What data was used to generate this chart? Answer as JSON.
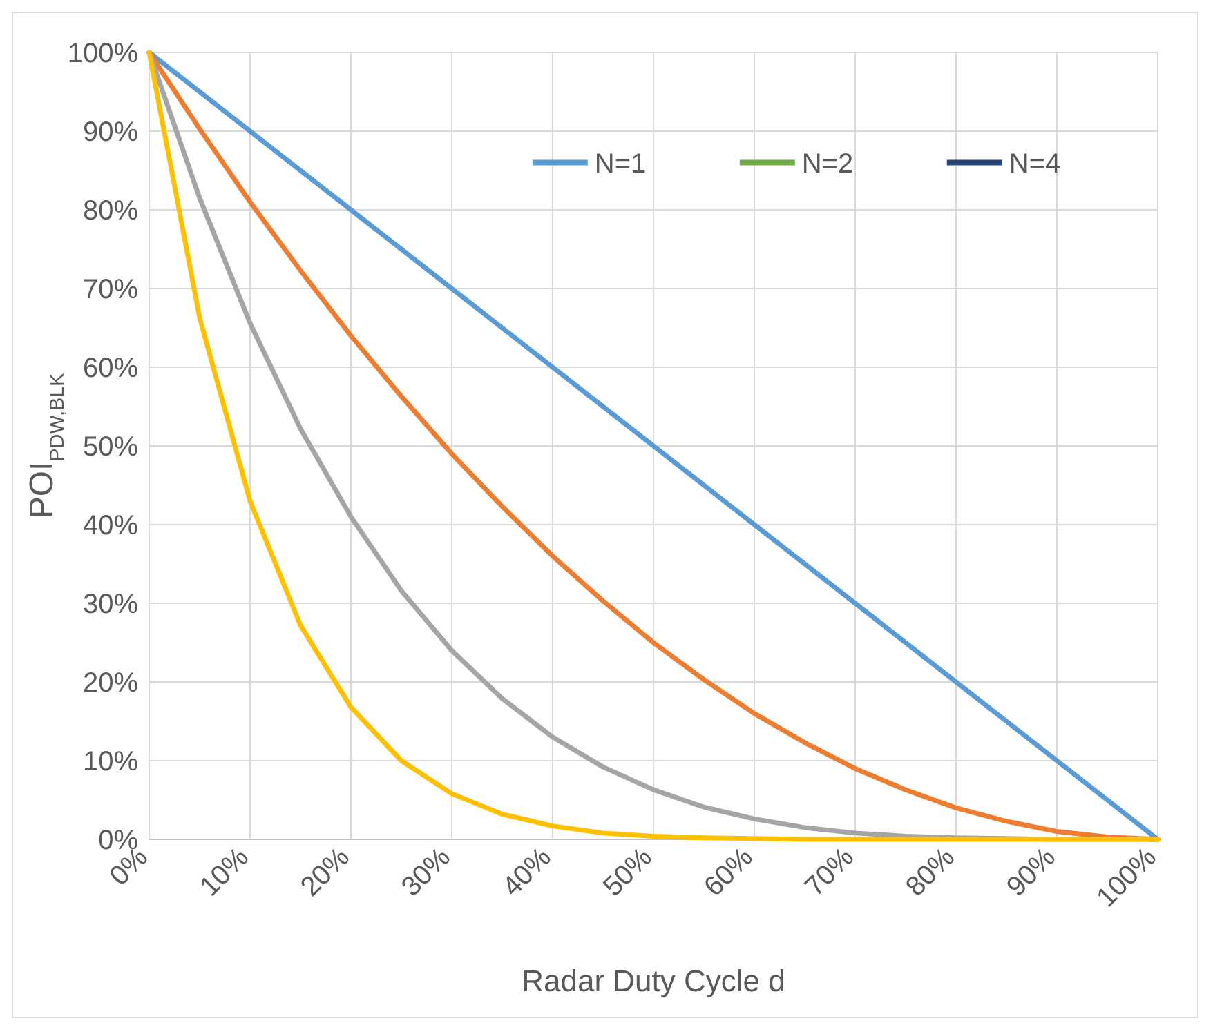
{
  "chart_data": {
    "type": "line",
    "xlabel": "Radar Duty Cycle d",
    "ylabel": "POI$_{PDW,BLK}$",
    "x": [
      0,
      5,
      10,
      15,
      20,
      25,
      30,
      35,
      40,
      45,
      50,
      55,
      60,
      65,
      70,
      75,
      80,
      85,
      90,
      95,
      100
    ],
    "xlim": [
      0,
      100
    ],
    "ylim": [
      0,
      100
    ],
    "xticks": [
      {
        "value": 0,
        "label": "0%"
      },
      {
        "value": 10,
        "label": "10%"
      },
      {
        "value": 20,
        "label": "20%"
      },
      {
        "value": 30,
        "label": "30%"
      },
      {
        "value": 40,
        "label": "40%"
      },
      {
        "value": 50,
        "label": "50%"
      },
      {
        "value": 60,
        "label": "60%"
      },
      {
        "value": 70,
        "label": "70%"
      },
      {
        "value": 80,
        "label": "80%"
      },
      {
        "value": 90,
        "label": "90%"
      },
      {
        "value": 100,
        "label": "100%"
      }
    ],
    "yticks": [
      {
        "value": 0,
        "label": "0%"
      },
      {
        "value": 10,
        "label": "10%"
      },
      {
        "value": 20,
        "label": "20%"
      },
      {
        "value": 30,
        "label": "30%"
      },
      {
        "value": 40,
        "label": "40%"
      },
      {
        "value": 50,
        "label": "50%"
      },
      {
        "value": 60,
        "label": "60%"
      },
      {
        "value": 70,
        "label": "70%"
      },
      {
        "value": 80,
        "label": "80%"
      },
      {
        "value": 90,
        "label": "90%"
      },
      {
        "value": 100,
        "label": "100%"
      }
    ],
    "grid": true,
    "legend": "top right",
    "marker": "none",
    "line_style": "solid",
    "series": [
      {
        "name": "N=1",
        "color": "#5b9bd5",
        "values": [
          100,
          95,
          90,
          85,
          80,
          75,
          70,
          65,
          60,
          55,
          50,
          45,
          40,
          35,
          30,
          25,
          20,
          15,
          10,
          5,
          0
        ]
      },
      {
        "name": "N=2",
        "color": "#70ad47",
        "values": [
          null,
          null,
          null,
          null,
          null,
          null,
          null,
          null,
          null,
          null,
          null,
          null,
          null,
          null,
          null,
          null,
          null,
          null,
          null,
          null,
          null
        ]
      },
      {
        "name": "N=4",
        "color": "#264478",
        "values": [
          null,
          null,
          null,
          null,
          null,
          null,
          null,
          null,
          null,
          null,
          null,
          null,
          null,
          null,
          null,
          null,
          null,
          null,
          null,
          null,
          null
        ]
      },
      {
        "color": "#ed7d31",
        "values": [
          100,
          90.3,
          81,
          72.3,
          64,
          56.3,
          49,
          42.3,
          36,
          30.3,
          25,
          20.3,
          16,
          12.3,
          9,
          6.3,
          4,
          2.3,
          1,
          0.3,
          0
        ]
      },
      {
        "color": "#a5a5a5",
        "values": [
          100,
          81.5,
          65.6,
          52.2,
          41,
          31.6,
          24,
          17.9,
          13,
          9.2,
          6.3,
          4.1,
          2.6,
          1.5,
          0.8,
          0.4,
          0.2,
          0.1,
          0,
          0,
          0
        ]
      },
      {
        "color": "#ffc000",
        "values": [
          100,
          66.3,
          43,
          27.2,
          16.8,
          10,
          5.8,
          3.2,
          1.7,
          0.8,
          0.4,
          0.2,
          0.1,
          0,
          0,
          0,
          0,
          0,
          0,
          0,
          0
        ]
      }
    ]
  }
}
